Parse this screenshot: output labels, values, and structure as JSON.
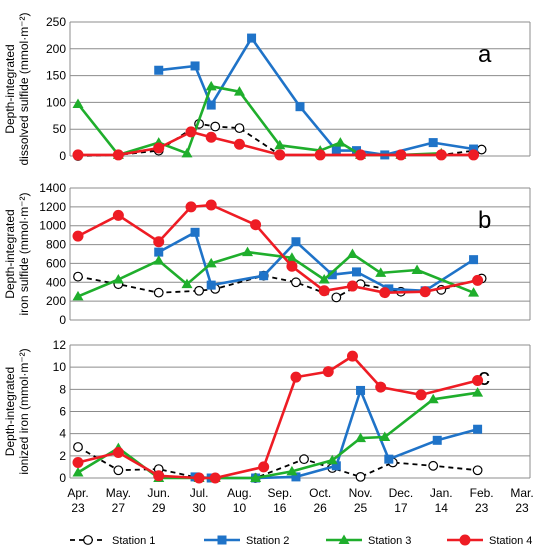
{
  "chart_data": {
    "type": "line",
    "x_labels": [
      [
        "Apr.",
        "23"
      ],
      [
        "May.",
        "27"
      ],
      [
        "Jun.",
        "29"
      ],
      [
        "Jul.",
        "30"
      ],
      [
        "Aug.",
        "10"
      ],
      [
        "Sep.",
        "16"
      ],
      [
        "Oct.",
        "26"
      ],
      [
        "Nov.",
        "25"
      ],
      [
        "Dec.",
        "17"
      ],
      [
        "Jan.",
        "14"
      ],
      [
        "Feb.",
        "23"
      ],
      [
        "Mar.",
        "23"
      ]
    ],
    "panels": [
      {
        "label": "a",
        "ylabel_lines": [
          "Depth-integrated",
          "dissolved sulfide (mmol·m⁻²)"
        ],
        "ylim": [
          0,
          250
        ],
        "yticks": [
          0,
          50,
          100,
          150,
          200,
          250
        ],
        "series": [
          {
            "name": "Station 1",
            "points": [
              [
                0,
                0
              ],
              [
                1,
                2
              ],
              [
                2,
                10
              ],
              [
                3,
                60
              ],
              [
                3.4,
                55
              ],
              [
                4,
                52
              ],
              [
                5,
                2
              ],
              [
                6,
                2
              ],
              [
                7,
                2
              ],
              [
                8,
                2
              ],
              [
                9,
                2
              ],
              [
                10,
                12
              ]
            ]
          },
          {
            "name": "Station 2",
            "points": [
              [
                2,
                160
              ],
              [
                2.9,
                168
              ],
              [
                3.3,
                95
              ],
              [
                4.3,
                220
              ],
              [
                5.5,
                92
              ],
              [
                6.4,
                10
              ],
              [
                6.9,
                10
              ],
              [
                7.6,
                2
              ],
              [
                8.8,
                25
              ],
              [
                9.8,
                13
              ]
            ]
          },
          {
            "name": "Station 3",
            "points": [
              [
                0,
                97
              ],
              [
                1,
                2
              ],
              [
                2,
                25
              ],
              [
                2.7,
                5
              ],
              [
                3.3,
                130
              ],
              [
                4,
                120
              ],
              [
                5,
                20
              ],
              [
                6,
                10
              ],
              [
                6.5,
                25
              ],
              [
                7,
                2
              ],
              [
                8,
                2
              ],
              [
                9,
                5
              ]
            ]
          },
          {
            "name": "Station 4",
            "points": [
              [
                0,
                2
              ],
              [
                1,
                2
              ],
              [
                2,
                15
              ],
              [
                2.8,
                45
              ],
              [
                3.3,
                35
              ],
              [
                4,
                22
              ],
              [
                5,
                2
              ],
              [
                6,
                2
              ],
              [
                7,
                2
              ],
              [
                8,
                2
              ],
              [
                9,
                2
              ],
              [
                9.8,
                2
              ]
            ]
          }
        ]
      },
      {
        "label": "b",
        "ylabel_lines": [
          "Depth-integrated",
          "iron sulfide (mmol·m⁻²)"
        ],
        "ylim": [
          0,
          1400
        ],
        "yticks": [
          0,
          200,
          400,
          600,
          800,
          1000,
          1200,
          1400
        ],
        "series": [
          {
            "name": "Station 1",
            "points": [
              [
                0,
                460
              ],
              [
                1,
                380
              ],
              [
                2,
                290
              ],
              [
                3,
                310
              ],
              [
                3.4,
                330
              ],
              [
                4.6,
                470
              ],
              [
                5.4,
                400
              ],
              [
                6.4,
                240
              ],
              [
                7,
                380
              ],
              [
                8,
                300
              ],
              [
                9,
                320
              ],
              [
                10,
                440
              ]
            ]
          },
          {
            "name": "Station 2",
            "points": [
              [
                2,
                720
              ],
              [
                2.9,
                930
              ],
              [
                3.3,
                370
              ],
              [
                4.6,
                470
              ],
              [
                5.4,
                830
              ],
              [
                6.3,
                480
              ],
              [
                6.9,
                510
              ],
              [
                7.7,
                330
              ],
              [
                8.6,
                310
              ],
              [
                9.8,
                640
              ]
            ]
          },
          {
            "name": "Station 3",
            "points": [
              [
                0,
                250
              ],
              [
                1,
                430
              ],
              [
                2,
                630
              ],
              [
                2.7,
                380
              ],
              [
                3.3,
                600
              ],
              [
                4.2,
                720
              ],
              [
                5.3,
                660
              ],
              [
                6.1,
                430
              ],
              [
                6.8,
                700
              ],
              [
                7.5,
                500
              ],
              [
                8.4,
                530
              ],
              [
                9.8,
                290
              ]
            ]
          },
          {
            "name": "Station 4",
            "points": [
              [
                0,
                890
              ],
              [
                1,
                1110
              ],
              [
                2,
                830
              ],
              [
                2.8,
                1200
              ],
              [
                3.3,
                1220
              ],
              [
                4.4,
                1010
              ],
              [
                5.3,
                570
              ],
              [
                6.1,
                310
              ],
              [
                6.8,
                360
              ],
              [
                7.6,
                290
              ],
              [
                8.6,
                300
              ],
              [
                9.9,
                420
              ]
            ]
          }
        ]
      },
      {
        "label": "c",
        "ylabel_lines": [
          "Depth-integrated",
          "ionized iron (mmol·m⁻²)"
        ],
        "ylim": [
          0,
          12
        ],
        "yticks": [
          0,
          2,
          4,
          6,
          8,
          10,
          12
        ],
        "series": [
          {
            "name": "Station 1",
            "points": [
              [
                0,
                2.8
              ],
              [
                1,
                0.7
              ],
              [
                2,
                0.8
              ],
              [
                3,
                0.0
              ],
              [
                3.4,
                0.0
              ],
              [
                4.4,
                0.0
              ],
              [
                5.6,
                1.7
              ],
              [
                6.3,
                0.9
              ],
              [
                7,
                0.1
              ],
              [
                7.8,
                1.4
              ],
              [
                8.8,
                1.1
              ],
              [
                9.9,
                0.7
              ]
            ]
          },
          {
            "name": "Station 2",
            "points": [
              [
                2.9,
                0.1
              ],
              [
                3.3,
                0.0
              ],
              [
                4.4,
                0.0
              ],
              [
                5.4,
                0.1
              ],
              [
                6.4,
                1.1
              ],
              [
                7,
                7.9
              ],
              [
                7.7,
                1.7
              ],
              [
                8.9,
                3.4
              ],
              [
                9.9,
                4.4
              ]
            ]
          },
          {
            "name": "Station 3",
            "points": [
              [
                0,
                0.5
              ],
              [
                1,
                2.7
              ],
              [
                2,
                0.0
              ],
              [
                3,
                0.0
              ],
              [
                3.4,
                0.0
              ],
              [
                4.4,
                0.0
              ],
              [
                5.3,
                0.6
              ],
              [
                6.3,
                1.6
              ],
              [
                7,
                3.6
              ],
              [
                7.6,
                3.7
              ],
              [
                8.8,
                7.1
              ],
              [
                9.9,
                7.7
              ]
            ]
          },
          {
            "name": "Station 4",
            "points": [
              [
                0,
                1.4
              ],
              [
                1,
                2.3
              ],
              [
                2,
                0.2
              ],
              [
                3,
                0.0
              ],
              [
                3.4,
                0.0
              ],
              [
                4.6,
                1.0
              ],
              [
                5.4,
                9.1
              ],
              [
                6.2,
                9.6
              ],
              [
                6.8,
                11.0
              ],
              [
                7.5,
                8.2
              ],
              [
                8.5,
                7.5
              ],
              [
                9.9,
                8.8
              ]
            ]
          }
        ]
      }
    ],
    "legend": [
      {
        "name": "Station 1",
        "color": "#000000",
        "marker": "open-circle",
        "dash": "dashed"
      },
      {
        "name": "Station 2",
        "color": "#1f73c8",
        "marker": "square",
        "dash": "solid"
      },
      {
        "name": "Station 3",
        "color": "#1fae2c",
        "marker": "triangle",
        "dash": "solid"
      },
      {
        "name": "Station 4",
        "color": "#ee1c24",
        "marker": "filled-circle",
        "dash": "solid"
      }
    ],
    "legend_position": "bottom"
  }
}
